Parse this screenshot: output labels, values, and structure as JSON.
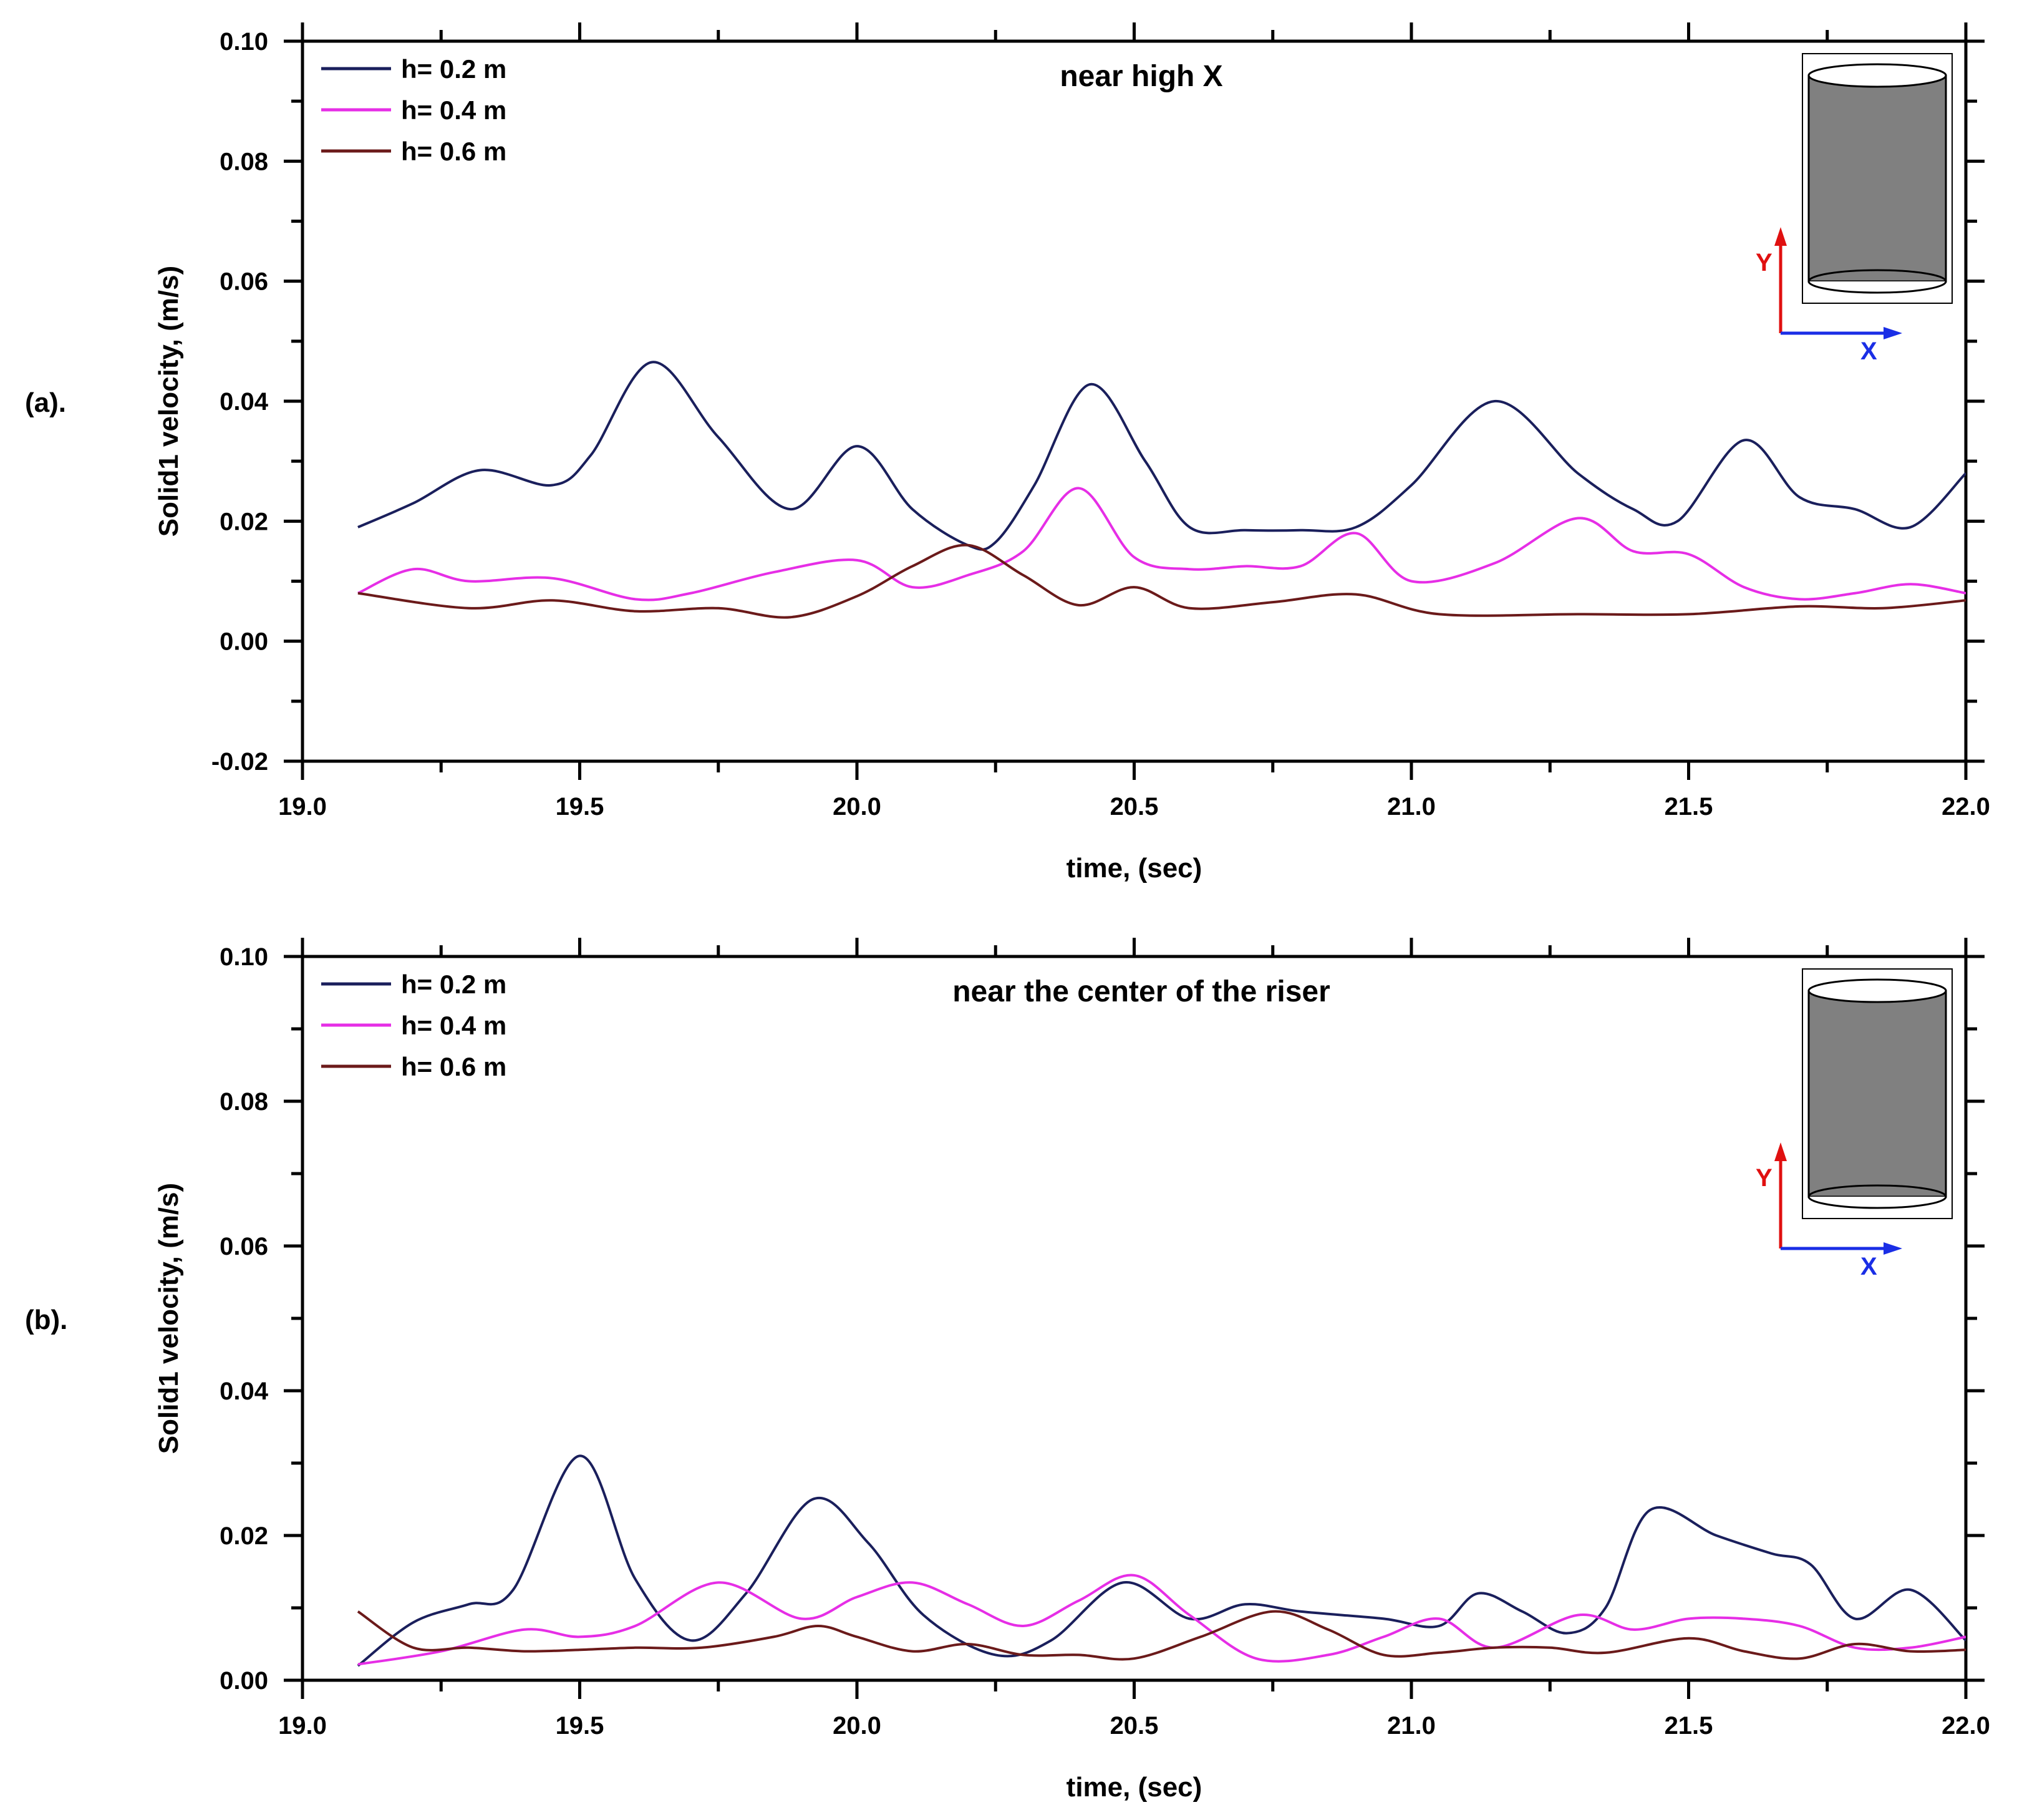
{
  "chart_data": [
    {
      "type": "line",
      "panel_label": "(a).",
      "title": "near high X",
      "xlabel": "time, (sec)",
      "ylabel": "Solid1 velocity, (m/s)",
      "xlim": [
        19.0,
        22.0
      ],
      "ylim": [
        -0.02,
        0.1
      ],
      "xticks": [
        "19.0",
        "19.5",
        "20.0",
        "20.5",
        "21.0",
        "21.5",
        "22.0"
      ],
      "yticks": [
        "-0.02",
        "0.00",
        "0.02",
        "0.04",
        "0.06",
        "0.08",
        "0.10"
      ],
      "legend_position": "top-left",
      "inset": {
        "y_label": "Y",
        "x_label": "X"
      },
      "series": [
        {
          "name": "h= 0.2 m",
          "color": "#1a1f5c",
          "x": [
            19.1,
            19.2,
            19.32,
            19.45,
            19.52,
            19.63,
            19.75,
            19.88,
            20.0,
            20.1,
            20.2,
            20.25,
            20.32,
            20.42,
            20.52,
            20.6,
            20.7,
            20.8,
            20.9,
            21.0,
            21.15,
            21.3,
            21.4,
            21.48,
            21.6,
            21.7,
            21.8,
            21.9,
            22.0
          ],
          "y": [
            0.019,
            0.023,
            0.0285,
            0.026,
            0.031,
            0.0465,
            0.034,
            0.022,
            0.0325,
            0.022,
            0.016,
            0.0165,
            0.026,
            0.0428,
            0.03,
            0.019,
            0.0185,
            0.0185,
            0.019,
            0.026,
            0.04,
            0.028,
            0.022,
            0.02,
            0.0335,
            0.024,
            0.022,
            0.019,
            0.028
          ]
        },
        {
          "name": "h= 0.4 m",
          "color": "#e62ee6",
          "x": [
            19.1,
            19.2,
            19.3,
            19.45,
            19.6,
            19.7,
            19.85,
            20.0,
            20.1,
            20.2,
            20.3,
            20.4,
            20.5,
            20.6,
            20.7,
            20.8,
            20.9,
            21.0,
            21.15,
            21.3,
            21.4,
            21.5,
            21.6,
            21.7,
            21.8,
            21.9,
            22.0
          ],
          "y": [
            0.008,
            0.012,
            0.01,
            0.0105,
            0.007,
            0.008,
            0.0115,
            0.0135,
            0.009,
            0.011,
            0.015,
            0.0255,
            0.014,
            0.012,
            0.0125,
            0.0125,
            0.018,
            0.01,
            0.013,
            0.0205,
            0.015,
            0.0145,
            0.009,
            0.007,
            0.008,
            0.0095,
            0.008
          ]
        },
        {
          "name": "h= 0.6 m",
          "color": "#6b1a1a",
          "x": [
            19.1,
            19.3,
            19.45,
            19.6,
            19.75,
            19.88,
            20.0,
            20.1,
            20.2,
            20.3,
            20.4,
            20.5,
            20.6,
            20.75,
            20.9,
            21.05,
            21.3,
            21.5,
            21.7,
            21.85,
            22.0
          ],
          "y": [
            0.008,
            0.0055,
            0.0068,
            0.005,
            0.0055,
            0.004,
            0.0075,
            0.0125,
            0.016,
            0.011,
            0.006,
            0.009,
            0.0055,
            0.0065,
            0.0078,
            0.0045,
            0.0045,
            0.0045,
            0.0058,
            0.0055,
            0.0068
          ]
        }
      ]
    },
    {
      "type": "line",
      "panel_label": "(b).",
      "title": "near the center of the riser",
      "xlabel": "time, (sec)",
      "ylabel": "Solid1 velocity, (m/s)",
      "xlim": [
        19.0,
        22.0
      ],
      "ylim": [
        0.0,
        0.1
      ],
      "xticks": [
        "19.0",
        "19.5",
        "20.0",
        "20.5",
        "21.0",
        "21.5",
        "22.0"
      ],
      "yticks": [
        "0.00",
        "0.02",
        "0.04",
        "0.06",
        "0.08",
        "0.10"
      ],
      "legend_position": "top-left",
      "inset": {
        "y_label": "Y",
        "x_label": "X"
      },
      "series": [
        {
          "name": "h= 0.2 m",
          "color": "#1a1f5c",
          "x": [
            19.1,
            19.2,
            19.3,
            19.38,
            19.5,
            19.6,
            19.7,
            19.8,
            19.92,
            20.02,
            20.12,
            20.25,
            20.35,
            20.48,
            20.6,
            20.7,
            20.8,
            20.95,
            21.05,
            21.12,
            21.2,
            21.28,
            21.35,
            21.43,
            21.55,
            21.65,
            21.72,
            21.8,
            21.9,
            22.0
          ],
          "y": [
            0.002,
            0.008,
            0.0105,
            0.0125,
            0.031,
            0.014,
            0.0055,
            0.012,
            0.025,
            0.019,
            0.009,
            0.0035,
            0.0055,
            0.0135,
            0.0085,
            0.0105,
            0.0095,
            0.0085,
            0.0075,
            0.012,
            0.0095,
            0.0065,
            0.01,
            0.0235,
            0.02,
            0.0175,
            0.016,
            0.0085,
            0.0125,
            0.0055
          ]
        },
        {
          "name": "h= 0.4 m",
          "color": "#e62ee6",
          "x": [
            19.1,
            19.25,
            19.4,
            19.5,
            19.6,
            19.75,
            19.9,
            20.0,
            20.1,
            20.2,
            20.3,
            20.4,
            20.5,
            20.6,
            20.72,
            20.85,
            20.95,
            21.05,
            21.15,
            21.3,
            21.4,
            21.5,
            21.6,
            21.7,
            21.8,
            21.9,
            22.0
          ],
          "y": [
            0.0022,
            0.004,
            0.007,
            0.006,
            0.0075,
            0.0135,
            0.0085,
            0.0115,
            0.0135,
            0.0105,
            0.0075,
            0.011,
            0.0145,
            0.009,
            0.003,
            0.0035,
            0.006,
            0.0085,
            0.0045,
            0.009,
            0.007,
            0.0085,
            0.0085,
            0.0075,
            0.0045,
            0.0045,
            0.006
          ]
        },
        {
          "name": "h= 0.6 m",
          "color": "#6b1a1a",
          "x": [
            19.1,
            19.2,
            19.3,
            19.4,
            19.5,
            19.6,
            19.72,
            19.85,
            19.93,
            20.0,
            20.1,
            20.2,
            20.3,
            20.4,
            20.5,
            20.62,
            20.75,
            20.85,
            20.95,
            21.05,
            21.15,
            21.25,
            21.35,
            21.5,
            21.6,
            21.7,
            21.8,
            21.9,
            22.0
          ],
          "y": [
            0.0095,
            0.0045,
            0.0045,
            0.004,
            0.0042,
            0.0045,
            0.0045,
            0.006,
            0.0075,
            0.006,
            0.004,
            0.005,
            0.0035,
            0.0035,
            0.003,
            0.006,
            0.0095,
            0.007,
            0.0035,
            0.0038,
            0.0045,
            0.0045,
            0.0038,
            0.0058,
            0.004,
            0.003,
            0.005,
            0.004,
            0.0042
          ]
        }
      ]
    }
  ]
}
